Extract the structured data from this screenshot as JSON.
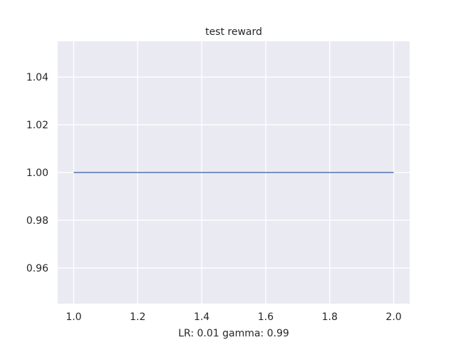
{
  "chart_data": {
    "type": "line",
    "title": "test reward",
    "xlabel": "LR: 0.01 gamma: 0.99",
    "ylabel": "",
    "x": [
      1.0,
      2.0
    ],
    "series": [
      {
        "values": [
          1.0,
          1.0
        ],
        "color": "#4c72b0"
      }
    ],
    "xlim": [
      0.95,
      2.05
    ],
    "ylim": [
      0.945,
      1.055
    ],
    "xticks": [
      1.0,
      1.2,
      1.4,
      1.6,
      1.8,
      2.0
    ],
    "xtick_labels": [
      "1.0",
      "1.2",
      "1.4",
      "1.6",
      "1.8",
      "2.0"
    ],
    "yticks": [
      0.96,
      0.98,
      1.0,
      1.02,
      1.04
    ],
    "ytick_labels": [
      "0.96",
      "0.98",
      "1.00",
      "1.02",
      "1.04"
    ],
    "grid": true,
    "style": {
      "background": "#eaeaf2",
      "grid_color": "#ffffff"
    }
  }
}
